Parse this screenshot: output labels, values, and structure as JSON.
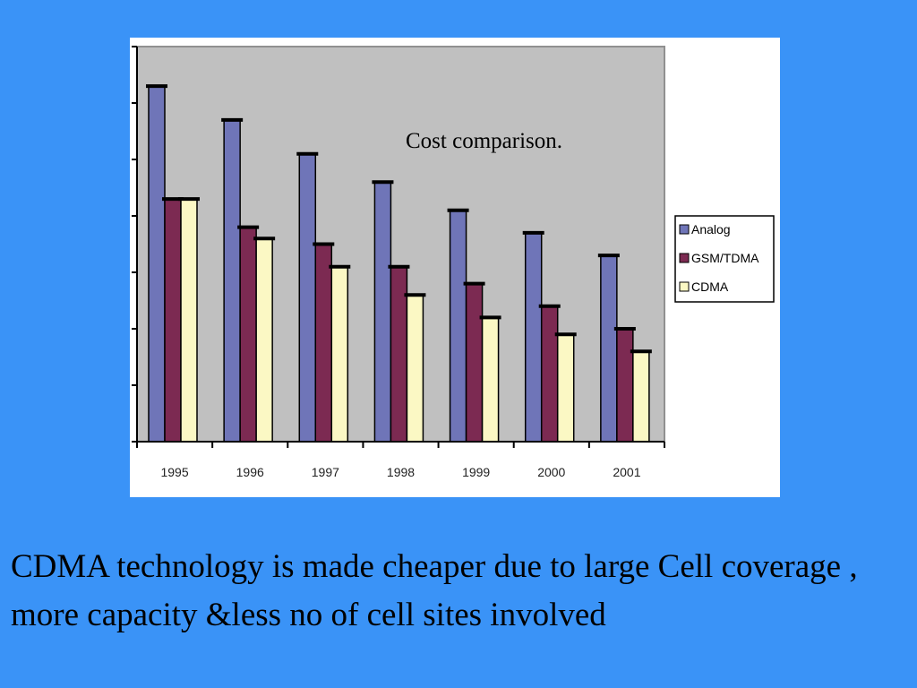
{
  "chart_data": {
    "type": "bar",
    "title": "Cost comparison.",
    "categories": [
      "1995",
      "1996",
      "1997",
      "1998",
      "1999",
      "2000",
      "2001"
    ],
    "series": [
      {
        "name": "Analog",
        "values": [
          63,
          57,
          51,
          46,
          41,
          37,
          33
        ],
        "color": "#6f75b8"
      },
      {
        "name": "GSM/TDMA",
        "values": [
          43,
          38,
          35,
          31,
          28,
          24,
          20
        ],
        "color": "#7c2a52"
      },
      {
        "name": "CDMA",
        "values": [
          43,
          36,
          31,
          26,
          22,
          19,
          16
        ],
        "color": "#fbf8c4"
      }
    ],
    "ylim": [
      0,
      70
    ],
    "ytick_step": 10,
    "grid": false,
    "legend_position": "right",
    "plot_background": "#c0c0c0"
  },
  "caption": "CDMA technology is made cheaper due to large Cell coverage , more capacity &less no of cell sites involved"
}
